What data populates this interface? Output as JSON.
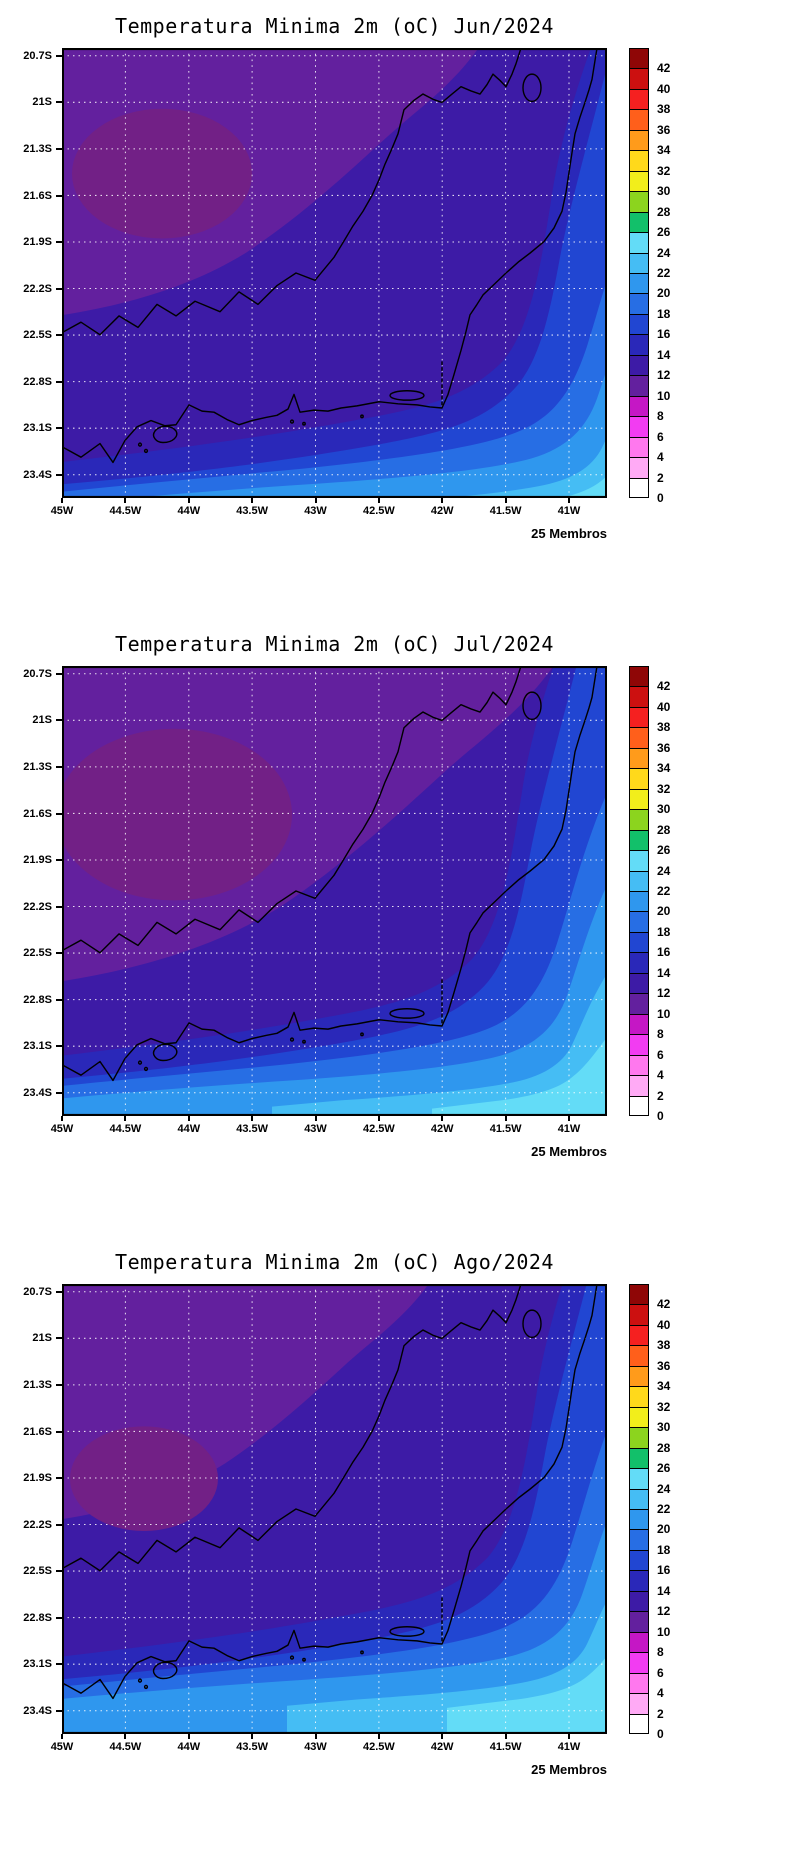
{
  "palette": {
    "p8_patch": "#722086",
    "p10": "#63209e",
    "p12": "#3d1ba6",
    "p14": "#2a28b9",
    "p16": "#2146d2",
    "p18": "#276ee4",
    "p20": "#2f97ee",
    "p22": "#45bdf4",
    "p24": "#63dcf7",
    "coastline": "#000000",
    "graticule": "#ffffff"
  },
  "colorbar": {
    "labels": [
      "42",
      "40",
      "38",
      "36",
      "34",
      "32",
      "30",
      "28",
      "26",
      "24",
      "22",
      "20",
      "18",
      "16",
      "14",
      "12",
      "10",
      "8",
      "6",
      "4",
      "2",
      "0"
    ],
    "colors_top_to_bottom": [
      "#8f0606",
      "#cc1010",
      "#f52020",
      "#ff5f1b",
      "#ff9b1b",
      "#ffd91b",
      "#f2ee1b",
      "#8cd41e",
      "#12c06a",
      "#63dcf7",
      "#45bdf4",
      "#2f97ee",
      "#276ee4",
      "#2146d2",
      "#2a28b9",
      "#3d1ba6",
      "#63209e",
      "#c517c5",
      "#f23cf2",
      "#ff78ee",
      "#ffaaf5",
      "#ffffff"
    ]
  },
  "axes": {
    "lat_ticks": [
      {
        "label": "20.7S",
        "f": 0.0172
      },
      {
        "label": "21S",
        "f": 0.1207
      },
      {
        "label": "21.3S",
        "f": 0.2242
      },
      {
        "label": "21.6S",
        "f": 0.3277
      },
      {
        "label": "21.9S",
        "f": 0.4312
      },
      {
        "label": "22.2S",
        "f": 0.5345
      },
      {
        "label": "22.5S",
        "f": 0.6379
      },
      {
        "label": "22.8S",
        "f": 0.7414
      },
      {
        "label": "23.1S",
        "f": 0.8449
      },
      {
        "label": "23.4S",
        "f": 0.9483
      }
    ],
    "lon_ticks": [
      {
        "label": "45W",
        "f": 0.0
      },
      {
        "label": "44.5W",
        "f": 0.1163
      },
      {
        "label": "44W",
        "f": 0.2326
      },
      {
        "label": "43.5W",
        "f": 0.3488
      },
      {
        "label": "43W",
        "f": 0.4651
      },
      {
        "label": "42.5W",
        "f": 0.5814
      },
      {
        "label": "42W",
        "f": 0.6977
      },
      {
        "label": "41.5W",
        "f": 0.814
      },
      {
        "label": "41W",
        "f": 0.9302
      }
    ]
  },
  "panels": [
    {
      "id": "jun",
      "title": "Temperatura Minima 2m (oC) Jun/2024",
      "caption": "25 Membros"
    },
    {
      "id": "jul",
      "title": "Temperatura Minima 2m (oC) Jul/2024",
      "caption": "25 Membros"
    },
    {
      "id": "ago",
      "title": "Temperatura Minima 2m (oC) Ago/2024",
      "caption": "25 Membros"
    }
  ],
  "chart_data": [
    {
      "type": "heatmap",
      "title": "Temperatura Minima 2m (oC) Jun/2024",
      "x_ticks": [
        "45W",
        "44.5W",
        "44W",
        "43.5W",
        "43W",
        "42.5W",
        "42W",
        "41.5W",
        "41W"
      ],
      "y_ticks": [
        "20.7S",
        "21S",
        "21.3S",
        "21.6S",
        "21.9S",
        "22.2S",
        "22.5S",
        "22.8S",
        "23.1S",
        "23.4S"
      ],
      "colorbar_levels_degC": [
        0,
        2,
        4,
        6,
        8,
        10,
        12,
        14,
        16,
        18,
        20,
        22,
        24,
        26,
        28,
        30,
        32,
        34,
        36,
        38,
        40,
        42
      ],
      "units": "oC",
      "annotation": "25 Membros",
      "grid": true,
      "legend_position": "right",
      "approx_values_degC": {
        "northwest_interior": "8-12",
        "central_interior": "12-14",
        "northeast_lowlands": "14-18",
        "coastal_strip": "16-20",
        "ocean_southeast": "20-24"
      }
    },
    {
      "type": "heatmap",
      "title": "Temperatura Minima 2m (oC) Jul/2024",
      "x_ticks": [
        "45W",
        "44.5W",
        "44W",
        "43.5W",
        "43W",
        "42.5W",
        "42W",
        "41.5W",
        "41W"
      ],
      "y_ticks": [
        "20.7S",
        "21S",
        "21.3S",
        "21.6S",
        "21.9S",
        "22.2S",
        "22.5S",
        "22.8S",
        "23.1S",
        "23.4S"
      ],
      "colorbar_levels_degC": [
        0,
        2,
        4,
        6,
        8,
        10,
        12,
        14,
        16,
        18,
        20,
        22,
        24,
        26,
        28,
        30,
        32,
        34,
        36,
        38,
        40,
        42
      ],
      "units": "oC",
      "annotation": "25 Membros",
      "grid": true,
      "legend_position": "right",
      "approx_values_degC": {
        "northwest_interior": "8-12",
        "central_interior": "12-14",
        "northeast_lowlands": "14-18",
        "coastal_strip": "16-20",
        "ocean_southeast": "20-26"
      }
    },
    {
      "type": "heatmap",
      "title": "Temperatura Minima 2m (oC) Ago/2024",
      "x_ticks": [
        "45W",
        "44.5W",
        "44W",
        "43.5W",
        "43W",
        "42.5W",
        "42W",
        "41.5W",
        "41W"
      ],
      "y_ticks": [
        "20.7S",
        "21S",
        "21.3S",
        "21.6S",
        "21.9S",
        "22.2S",
        "22.5S",
        "22.8S",
        "23.1S",
        "23.4S"
      ],
      "colorbar_levels_degC": [
        0,
        2,
        4,
        6,
        8,
        10,
        12,
        14,
        16,
        18,
        20,
        22,
        24,
        26,
        28,
        30,
        32,
        34,
        36,
        38,
        40,
        42
      ],
      "units": "oC",
      "annotation": "25 Membros",
      "grid": true,
      "legend_position": "right",
      "approx_values_degC": {
        "northwest_interior": "10-12",
        "central_interior": "12-14",
        "northeast_lowlands": "14-18",
        "coastal_strip": "18-20",
        "ocean_southeast": "20-26"
      }
    }
  ]
}
